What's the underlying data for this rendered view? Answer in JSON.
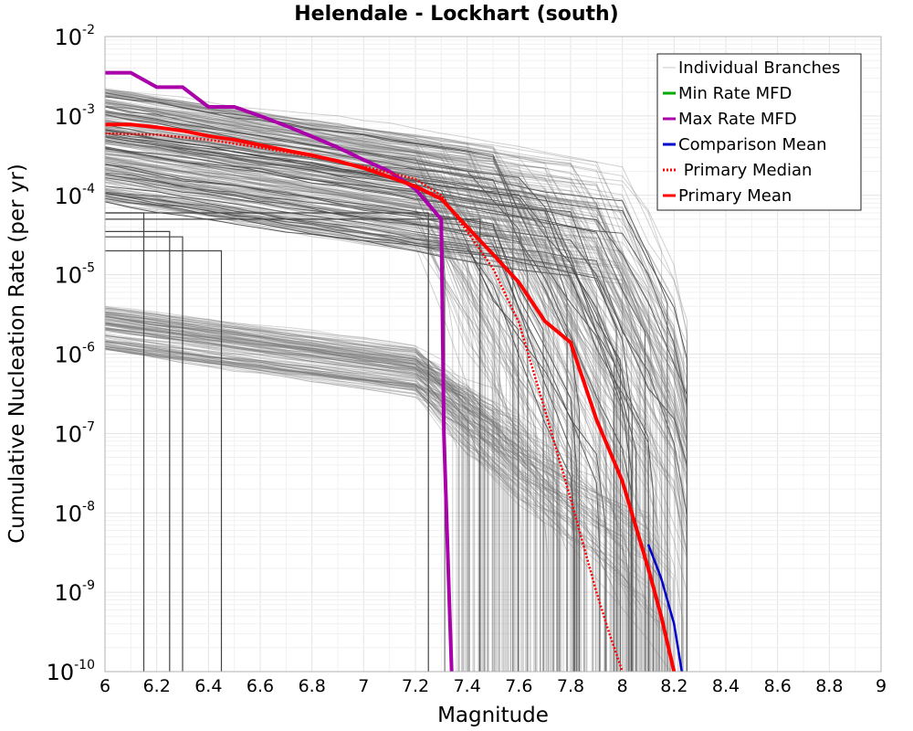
{
  "chart_data": {
    "type": "line",
    "title": "Helendale - Lockhart (south)",
    "xlabel": "Magnitude",
    "ylabel": "Cumulative Nucleation Rate (per yr)",
    "xlim": [
      6,
      9
    ],
    "ylim": [
      1e-10,
      0.01
    ],
    "y_scale": "log",
    "x_ticks": [
      "6",
      "6.2",
      "6.4",
      "6.6",
      "6.8",
      "7",
      "7.2",
      "7.4",
      "7.6",
      "7.8",
      "8",
      "8.2",
      "8.4",
      "8.6",
      "8.8",
      "9"
    ],
    "y_ticks": [
      {
        "base": "10",
        "exp": "-2",
        "value": 0.01
      },
      {
        "base": "10",
        "exp": "-3",
        "value": 0.001
      },
      {
        "base": "10",
        "exp": "-4",
        "value": 0.0001
      },
      {
        "base": "10",
        "exp": "-5",
        "value": 1e-05
      },
      {
        "base": "10",
        "exp": "-6",
        "value": 1e-06
      },
      {
        "base": "10",
        "exp": "-7",
        "value": 1e-07
      },
      {
        "base": "10",
        "exp": "-8",
        "value": 1e-08
      },
      {
        "base": "10",
        "exp": "-9",
        "value": 1e-09
      },
      {
        "base": "10",
        "exp": "-10",
        "value": 1e-10
      }
    ],
    "grid": true,
    "legend_position": "top-right",
    "legend": [
      {
        "label": "Individual Branches",
        "color": "#c8c8c8",
        "style": "solid"
      },
      {
        "label": "Min Rate MFD",
        "color": "#00aa00",
        "style": "solid"
      },
      {
        "label": "Max Rate MFD",
        "color": "#aa00aa",
        "style": "solid"
      },
      {
        "label": "Comparison Mean",
        "color": "#0000cc",
        "style": "solid"
      },
      {
        "label": " Primary Median",
        "color": "#ff0000",
        "style": "dotted"
      },
      {
        "label": "Primary Mean",
        "color": "#ff0000",
        "style": "solid"
      }
    ],
    "series": [
      {
        "name": "Max Rate MFD",
        "color": "#aa00aa",
        "x": [
          6.0,
          6.1,
          6.2,
          6.3,
          6.4,
          6.5,
          6.6,
          6.7,
          6.8,
          6.9,
          7.0,
          7.1,
          7.2,
          7.3,
          7.31,
          7.33,
          7.34
        ],
        "y": [
          0.0035,
          0.0035,
          0.0023,
          0.0023,
          0.0013,
          0.0013,
          0.001,
          0.00075,
          0.00055,
          0.0004,
          0.00028,
          0.0002,
          0.00012,
          5e-05,
          1e-07,
          1e-09,
          1e-10
        ]
      },
      {
        "name": "Comparison Mean",
        "color": "#0000cc",
        "x": [
          8.1,
          8.15,
          8.2,
          8.23
        ],
        "y": [
          4e-09,
          1.5e-09,
          4e-10,
          1e-10
        ]
      },
      {
        "name": "Primary Median",
        "color": "#ff0000",
        "x": [
          6.0,
          6.2,
          6.4,
          6.6,
          6.8,
          7.0,
          7.2,
          7.3,
          7.4,
          7.5,
          7.6,
          7.7,
          7.8,
          7.9,
          7.95,
          8.0
        ],
        "y": [
          0.0006,
          0.00058,
          0.0005,
          0.0004,
          0.00031,
          0.00023,
          0.00016,
          0.0001,
          3.5e-05,
          1.2e-05,
          2.5e-06,
          2e-07,
          1.5e-08,
          1e-09,
          3e-10,
          1e-10
        ]
      },
      {
        "name": "Primary Mean",
        "color": "#ff0000",
        "x": [
          6.0,
          6.1,
          6.2,
          6.3,
          6.4,
          6.5,
          6.6,
          6.7,
          6.8,
          6.9,
          7.0,
          7.1,
          7.2,
          7.3,
          7.4,
          7.5,
          7.6,
          7.7,
          7.8,
          7.9,
          8.0,
          8.1,
          8.15,
          8.2
        ],
        "y": [
          0.00078,
          0.00078,
          0.00072,
          0.00065,
          0.00056,
          0.0005,
          0.00043,
          0.00037,
          0.00032,
          0.00027,
          0.00022,
          0.00017,
          0.00013,
          9e-05,
          4e-05,
          1.8e-05,
          8e-06,
          2.6e-06,
          1.4e-06,
          1.5e-07,
          2.5e-08,
          2e-09,
          5e-10,
          1e-10
        ]
      }
    ]
  }
}
